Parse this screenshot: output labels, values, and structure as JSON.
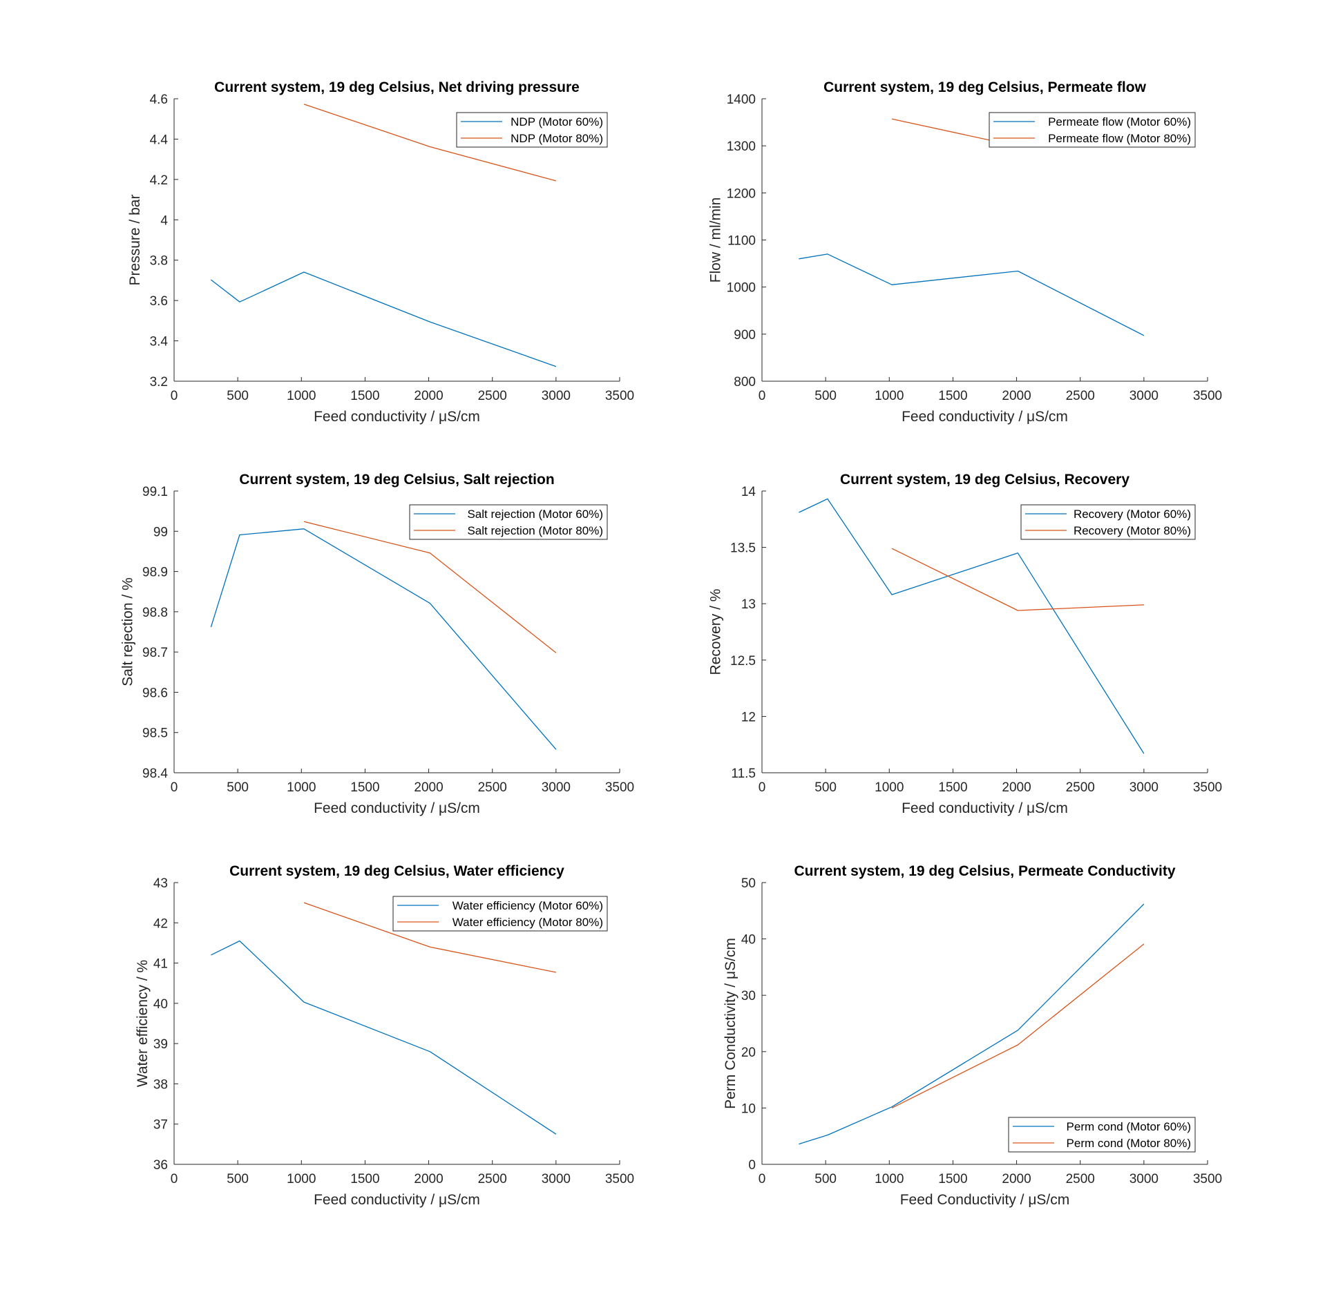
{
  "chart_data": [
    {
      "type": "line",
      "title": "Current system, 19 deg Celsius, Net driving pressure",
      "xlabel": "Feed conductivity / μS/cm",
      "ylabel": "Pressure / bar",
      "xlim": [
        0,
        3500
      ],
      "ylim": [
        3.2,
        4.6
      ],
      "xticks": [
        0,
        500,
        1000,
        1500,
        2000,
        2500,
        3000,
        3500
      ],
      "yticks": [
        3.2,
        3.4,
        3.6,
        3.8,
        4,
        4.2,
        4.4,
        4.6
      ],
      "xtick_labels": [
        "0",
        "500",
        "1000",
        "1500",
        "2000",
        "2500",
        "3000",
        "3500"
      ],
      "ytick_labels": [
        "3.2",
        "3.4",
        "3.6",
        "3.8",
        "4",
        "4.2",
        "4.4",
        "4.6"
      ],
      "legend": "top-right",
      "series": [
        {
          "name": "NDP (Motor 60%)",
          "color": "#0072BD",
          "x": [
            290,
            515,
            1020,
            2010,
            3000
          ],
          "y": [
            3.703,
            3.593,
            3.741,
            3.494,
            3.273
          ]
        },
        {
          "name": "NDP (Motor 80%)",
          "color": "#D95319",
          "x": [
            1020,
            2010,
            3000
          ],
          "y": [
            4.573,
            4.362,
            4.193
          ]
        }
      ]
    },
    {
      "type": "line",
      "title": "Current system, 19 deg Celsius, Permeate flow",
      "xlabel": "Feed conductivity / μS/cm",
      "ylabel": "Flow / ml/min",
      "xlim": [
        0,
        3500
      ],
      "ylim": [
        800,
        1400
      ],
      "xticks": [
        0,
        500,
        1000,
        1500,
        2000,
        2500,
        3000,
        3500
      ],
      "yticks": [
        800,
        900,
        1000,
        1100,
        1200,
        1300,
        1400
      ],
      "xtick_labels": [
        "0",
        "500",
        "1000",
        "1500",
        "2000",
        "2500",
        "3000",
        "3500"
      ],
      "ytick_labels": [
        "800",
        "900",
        "1000",
        "1100",
        "1200",
        "1300",
        "1400"
      ],
      "legend": "top-right",
      "series": [
        {
          "name": "Permeate flow (Motor 60%)",
          "color": "#0072BD",
          "x": [
            290,
            515,
            1020,
            2010,
            3000
          ],
          "y": [
            1060,
            1070,
            1005,
            1034,
            897
          ]
        },
        {
          "name": "Permeate flow (Motor 80%)",
          "color": "#D95319",
          "x": [
            1020,
            2010,
            3000
          ],
          "y": [
            1357,
            1299,
            1300
          ]
        }
      ]
    },
    {
      "type": "line",
      "title": "Current system, 19 deg Celsius, Salt rejection",
      "xlabel": "Feed conductivity / μS/cm",
      "ylabel": "Salt rejection / %",
      "xlim": [
        0,
        3500
      ],
      "ylim": [
        98.4,
        99.1
      ],
      "xticks": [
        0,
        500,
        1000,
        1500,
        2000,
        2500,
        3000,
        3500
      ],
      "yticks": [
        98.4,
        98.5,
        98.6,
        98.7,
        98.8,
        98.9,
        99,
        99.1
      ],
      "xtick_labels": [
        "0",
        "500",
        "1000",
        "1500",
        "2000",
        "2500",
        "3000",
        "3500"
      ],
      "ytick_labels": [
        "98.4",
        "98.5",
        "98.6",
        "98.7",
        "98.8",
        "98.9",
        "99",
        "99.1"
      ],
      "legend": "top-right",
      "series": [
        {
          "name": "Salt rejection (Motor 60%)",
          "color": "#0072BD",
          "x": [
            290,
            515,
            1020,
            2010,
            3000
          ],
          "y": [
            98.762,
            98.991,
            99.006,
            98.821,
            98.458
          ]
        },
        {
          "name": "Salt rejection (Motor 80%)",
          "color": "#D95319",
          "x": [
            1020,
            2010,
            3000
          ],
          "y": [
            99.024,
            98.946,
            98.698
          ]
        }
      ]
    },
    {
      "type": "line",
      "title": "Current system, 19 deg Celsius, Recovery",
      "xlabel": "Feed conductivity / μS/cm",
      "ylabel": "Recovery / %",
      "xlim": [
        0,
        3500
      ],
      "ylim": [
        11.5,
        14
      ],
      "xticks": [
        0,
        500,
        1000,
        1500,
        2000,
        2500,
        3000,
        3500
      ],
      "yticks": [
        11.5,
        12,
        12.5,
        13,
        13.5,
        14
      ],
      "xtick_labels": [
        "0",
        "500",
        "1000",
        "1500",
        "2000",
        "2500",
        "3000",
        "3500"
      ],
      "ytick_labels": [
        "11.5",
        "12",
        "12.5",
        "13",
        "13.5",
        "14"
      ],
      "legend": "top-right",
      "series": [
        {
          "name": "Recovery (Motor 60%)",
          "color": "#0072BD",
          "x": [
            290,
            515,
            1020,
            2010,
            3000
          ],
          "y": [
            13.81,
            13.93,
            13.08,
            13.45,
            11.67
          ]
        },
        {
          "name": "Recovery (Motor 80%)",
          "color": "#D95319",
          "x": [
            1020,
            2010,
            3000
          ],
          "y": [
            13.49,
            12.94,
            12.99
          ]
        }
      ]
    },
    {
      "type": "line",
      "title": "Current system, 19 deg Celsius, Water efficiency",
      "xlabel": "Feed conductivity / μS/cm",
      "ylabel": "Water efficiency / %",
      "xlim": [
        0,
        3500
      ],
      "ylim": [
        36,
        43
      ],
      "xticks": [
        0,
        500,
        1000,
        1500,
        2000,
        2500,
        3000,
        3500
      ],
      "yticks": [
        36,
        37,
        38,
        39,
        40,
        41,
        42,
        43
      ],
      "xtick_labels": [
        "0",
        "500",
        "1000",
        "1500",
        "2000",
        "2500",
        "3000",
        "3500"
      ],
      "ytick_labels": [
        "36",
        "37",
        "38",
        "39",
        "40",
        "41",
        "42",
        "43"
      ],
      "legend": "top-right",
      "series": [
        {
          "name": "Water efficiency (Motor 60%)",
          "color": "#0072BD",
          "x": [
            290,
            515,
            1020,
            2010,
            3000
          ],
          "y": [
            41.2,
            41.55,
            40.03,
            38.8,
            36.75
          ]
        },
        {
          "name": "Water efficiency (Motor 80%)",
          "color": "#D95319",
          "x": [
            1020,
            2010,
            3000
          ],
          "y": [
            42.5,
            41.4,
            40.77
          ]
        }
      ]
    },
    {
      "type": "line",
      "title": "Current system, 19 deg Celsius, Permeate Conductivity",
      "xlabel": "Feed Conductivity / μS/cm",
      "ylabel": "Perm Conductivity / μS/cm",
      "xlim": [
        0,
        3500
      ],
      "ylim": [
        0,
        50
      ],
      "xticks": [
        0,
        500,
        1000,
        1500,
        2000,
        2500,
        3000,
        3500
      ],
      "yticks": [
        0,
        10,
        20,
        30,
        40,
        50
      ],
      "xtick_labels": [
        "0",
        "500",
        "1000",
        "1500",
        "2000",
        "2500",
        "3000",
        "3500"
      ],
      "ytick_labels": [
        "0",
        "10",
        "20",
        "30",
        "40",
        "50"
      ],
      "legend": "bottom-right",
      "series": [
        {
          "name": "Perm cond (Motor 60%)",
          "color": "#0072BD",
          "x": [
            290,
            515,
            1020,
            2010,
            3000
          ],
          "y": [
            3.6,
            5.2,
            10.2,
            23.8,
            46.2
          ]
        },
        {
          "name": "Perm cond (Motor 80%)",
          "color": "#D95319",
          "x": [
            1020,
            2010,
            3000
          ],
          "y": [
            10.0,
            21.2,
            39.1
          ]
        }
      ]
    }
  ]
}
